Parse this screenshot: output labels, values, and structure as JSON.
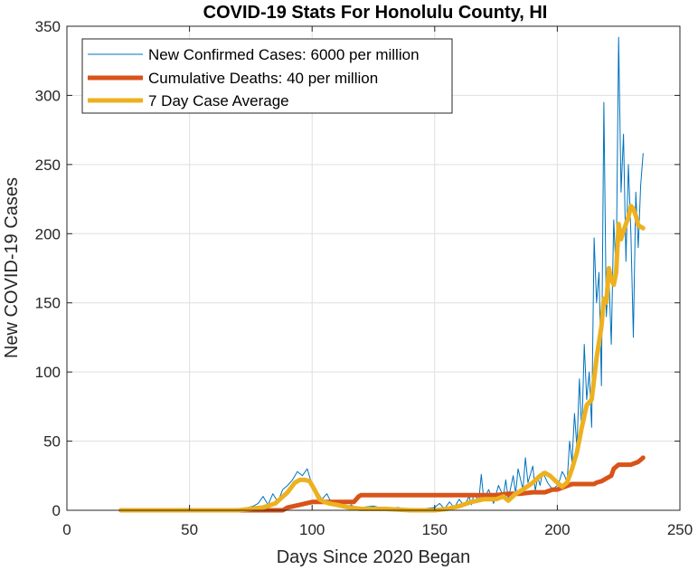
{
  "chart_data": {
    "type": "line",
    "title": "COVID-19 Stats For Honolulu County, HI",
    "xlabel": "Days Since 2020 Began",
    "ylabel": "New COVID-19 Cases",
    "xlim": [
      0,
      250
    ],
    "ylim": [
      0,
      350
    ],
    "xticks": [
      0,
      50,
      100,
      150,
      200,
      250
    ],
    "yticks": [
      0,
      50,
      100,
      150,
      200,
      250,
      300,
      350
    ],
    "grid": true,
    "legend_position": "top-left",
    "series": [
      {
        "name": "New Confirmed Cases: 6000 per million",
        "color": "#0072bd",
        "x": [
          22,
          40,
          60,
          70,
          74,
          76,
          78,
          80,
          82,
          84,
          86,
          88,
          90,
          92,
          94,
          96,
          98,
          100,
          102,
          104,
          106,
          108,
          110,
          112,
          114,
          116,
          118,
          120,
          125,
          130,
          135,
          140,
          145,
          150,
          152,
          154,
          156,
          158,
          160,
          162,
          164,
          165,
          166,
          168,
          169,
          170,
          172,
          174,
          176,
          178,
          179,
          180,
          182,
          183,
          184,
          186,
          187,
          188,
          190,
          191,
          192,
          193,
          194,
          196,
          198,
          200,
          201,
          202,
          203,
          204,
          205,
          206,
          207,
          208,
          209,
          210,
          211,
          212,
          213,
          214,
          215,
          216,
          217,
          218,
          219,
          220,
          221,
          222,
          223,
          224,
          225,
          226,
          227,
          228,
          229,
          230,
          231,
          232,
          233,
          234,
          235
        ],
        "values": [
          0,
          0,
          0,
          0,
          2,
          3,
          5,
          10,
          4,
          12,
          6,
          15,
          18,
          22,
          28,
          25,
          30,
          18,
          14,
          8,
          12,
          5,
          3,
          6,
          2,
          4,
          1,
          2,
          3,
          1,
          2,
          0,
          1,
          2,
          5,
          1,
          6,
          2,
          8,
          3,
          10,
          4,
          12,
          7,
          26,
          8,
          15,
          5,
          18,
          10,
          22,
          8,
          25,
          12,
          30,
          15,
          38,
          20,
          32,
          14,
          24,
          18,
          28,
          20,
          15,
          18,
          22,
          28,
          25,
          20,
          50,
          35,
          70,
          45,
          95,
          55,
          120,
          80,
          100,
          60,
          197,
          150,
          172,
          90,
          295,
          140,
          170,
          120,
          210,
          170,
          342,
          230,
          272,
          180,
          250,
          200,
          125,
          230,
          190,
          235,
          258
        ]
      },
      {
        "name": "Cumulative Deaths: 40 per million",
        "color": "#d95319",
        "x": [
          22,
          88,
          90,
          95,
          100,
          117,
          118,
          119,
          120,
          150,
          170,
          175,
          180,
          185,
          190,
          195,
          198,
          200,
          203,
          206,
          215,
          216,
          218,
          220,
          222,
          223,
          225,
          230,
          233,
          235
        ],
        "values": [
          0,
          0,
          2,
          4,
          6,
          6,
          8,
          10,
          11,
          11,
          11,
          11,
          12,
          12,
          13,
          13,
          15,
          15,
          17,
          19,
          19,
          20,
          21,
          23,
          25,
          30,
          33,
          33,
          35,
          38
        ]
      },
      {
        "name": "7 Day Case Average",
        "color": "#edb120",
        "x": [
          22,
          70,
          80,
          85,
          90,
          93,
          95,
          97,
          99,
          101,
          103,
          105,
          107,
          110,
          115,
          120,
          130,
          140,
          150,
          155,
          160,
          165,
          170,
          175,
          178,
          180,
          183,
          186,
          190,
          193,
          195,
          197,
          200,
          202,
          204,
          206,
          208,
          210,
          212,
          214,
          216,
          218,
          219,
          220,
          221,
          222,
          223,
          224,
          225,
          226,
          227,
          228,
          229,
          230,
          231,
          232,
          233,
          234,
          235
        ],
        "values": [
          0,
          0,
          2,
          5,
          13,
          20,
          22,
          22,
          21,
          15,
          8,
          6,
          5,
          4,
          2,
          1,
          1,
          0,
          0,
          1,
          3,
          6,
          8,
          8,
          10,
          7,
          12,
          15,
          20,
          25,
          27,
          25,
          20,
          17,
          20,
          30,
          42,
          60,
          76,
          80,
          110,
          133,
          153,
          150,
          175,
          167,
          163,
          172,
          207,
          196,
          202,
          207,
          212,
          220,
          218,
          213,
          206,
          205,
          204
        ]
      }
    ]
  }
}
